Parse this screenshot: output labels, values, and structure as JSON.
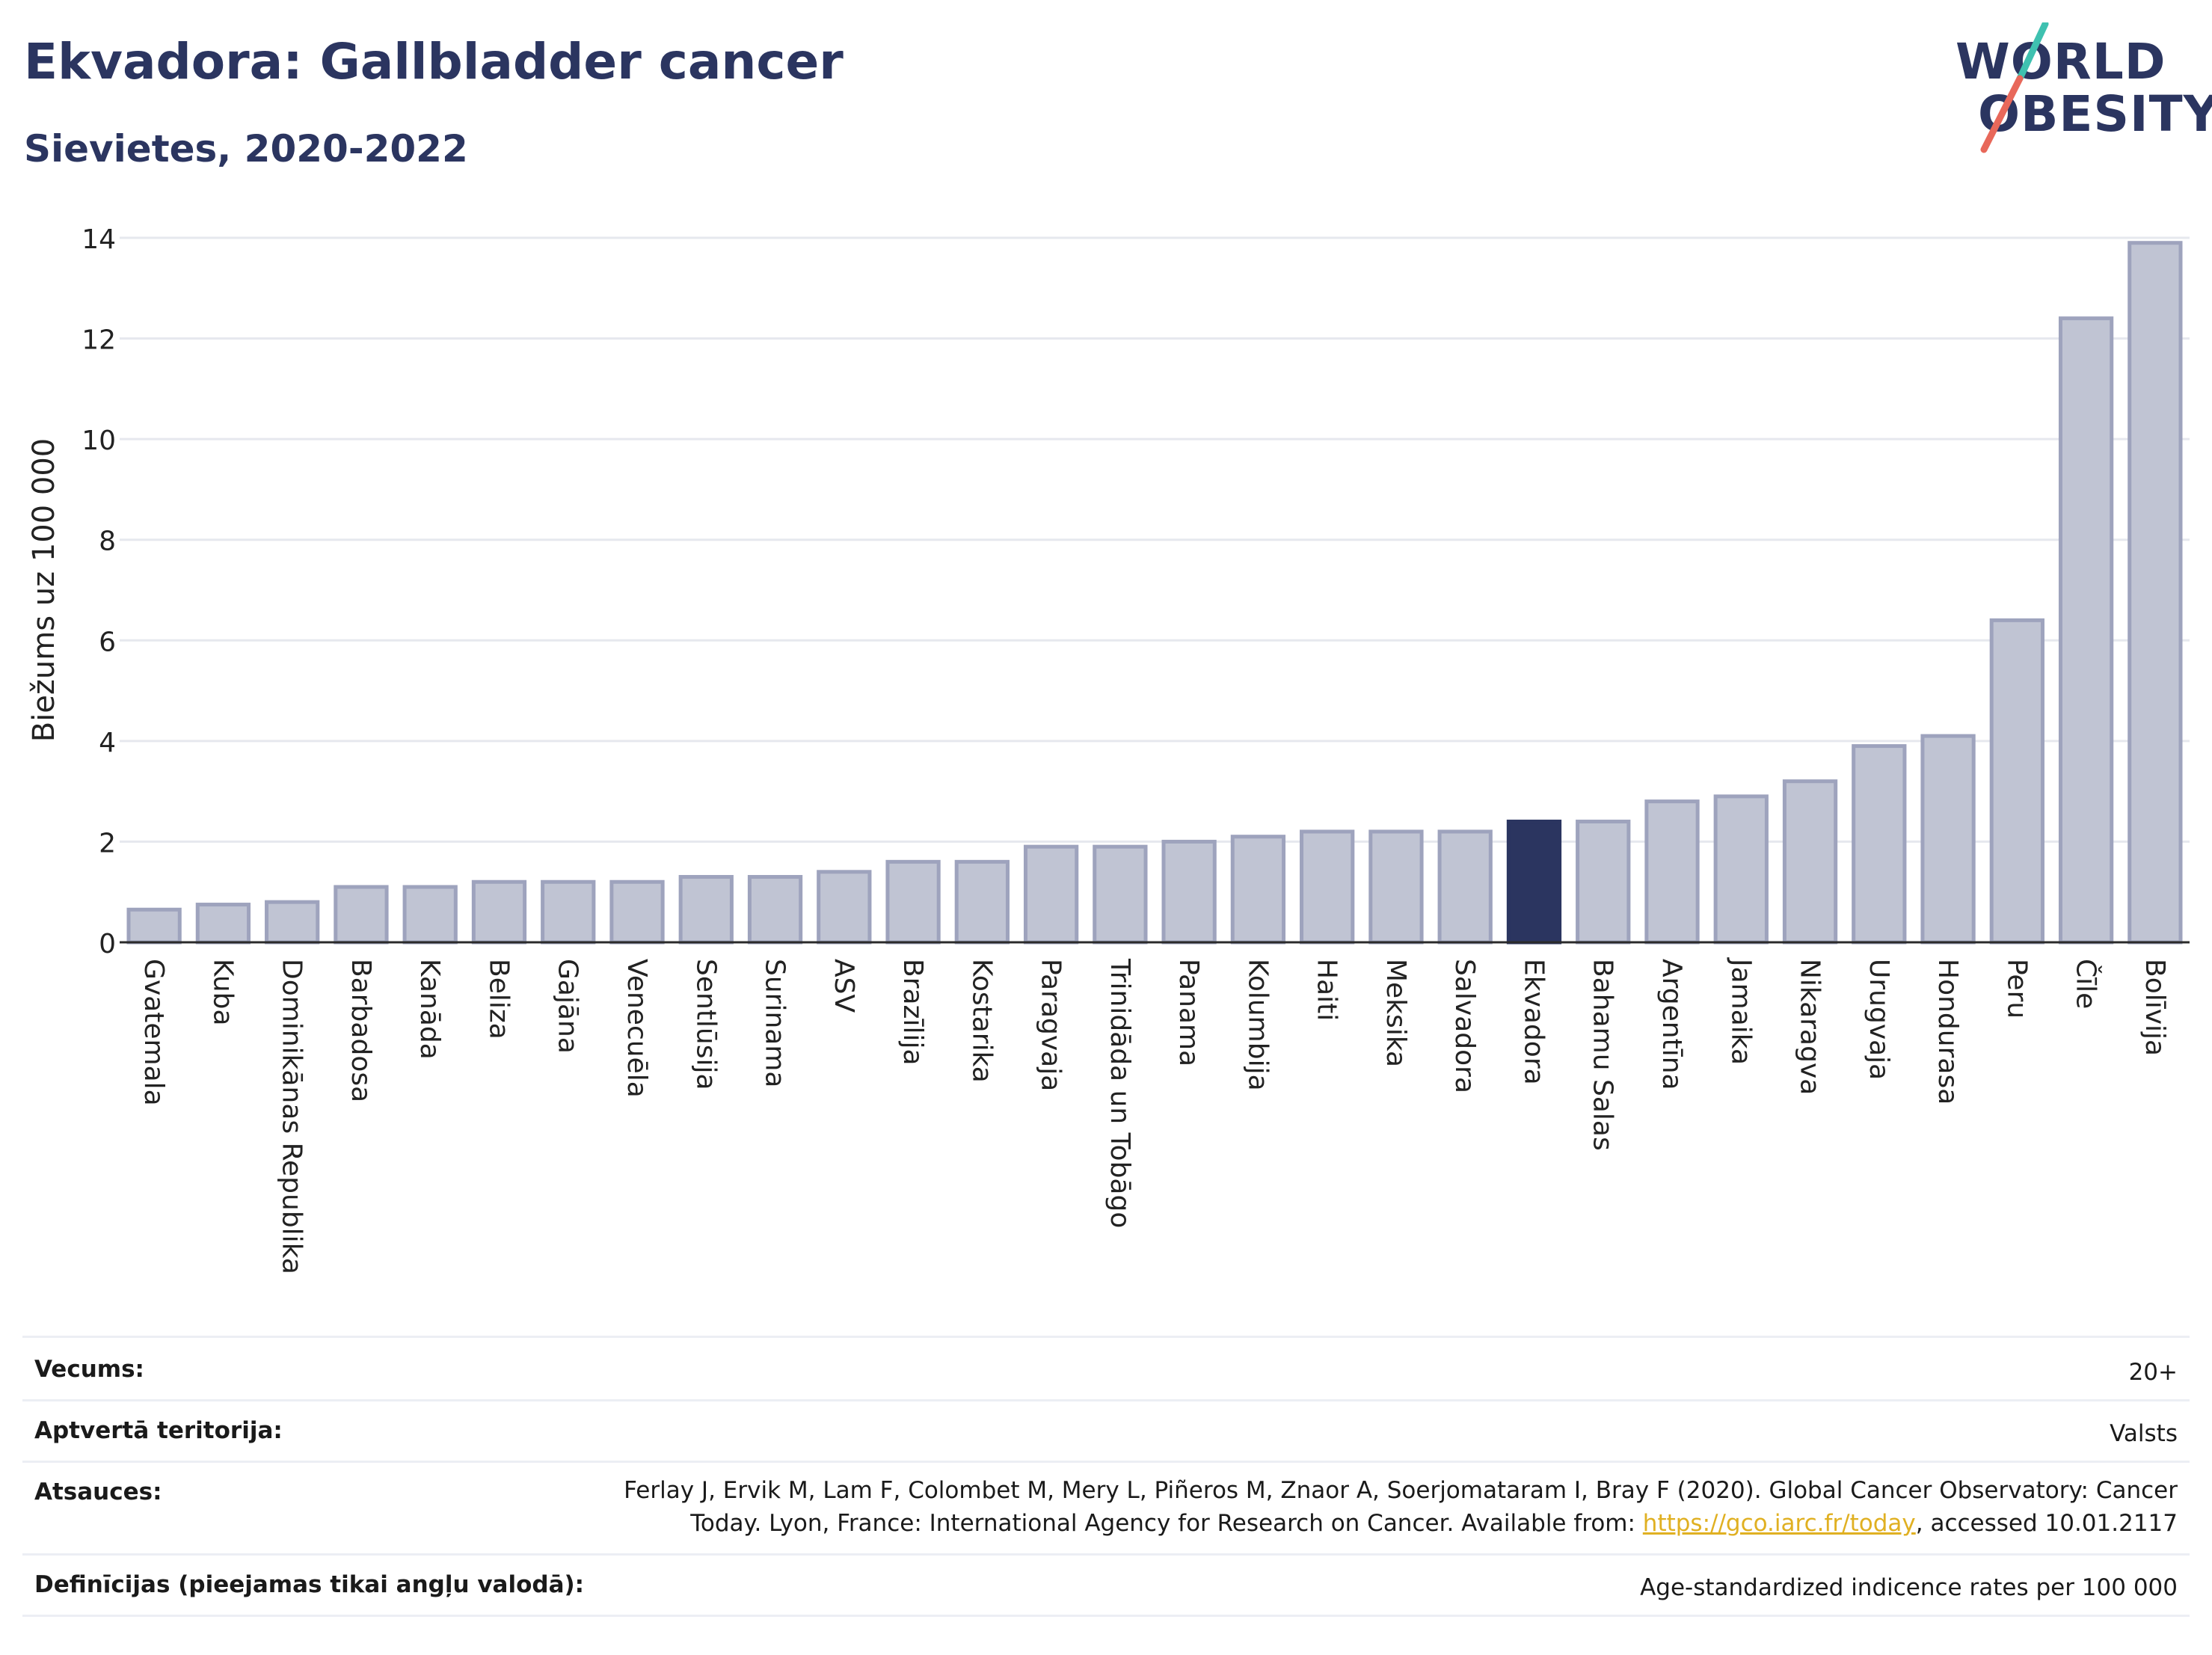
{
  "title": "Ekvadora: Gallbladder cancer",
  "subtitle": "Sievietes, 2020-2022",
  "logo": {
    "line1": "WORLD",
    "line2": "OBESITY",
    "slash_colors": [
      "#3fc1b0",
      "#e8685a"
    ]
  },
  "colors": {
    "bar": "#c0c4d3",
    "bar_border": "#9ea3bd",
    "highlight": "#2b3560",
    "grid": "#e6e8ee",
    "axis": "#2b2b2b"
  },
  "chart_data": {
    "type": "bar",
    "ylabel": "Biežums uz 100 000",
    "ylim": [
      0,
      14
    ],
    "yticks": [
      0,
      2,
      4,
      6,
      8,
      10,
      12,
      14
    ],
    "highlight": "Ekvadora",
    "categories": [
      "Gvatemala",
      "Kuba",
      "Dominikānas Republika",
      "Barbadosa",
      "Kanāda",
      "Beliza",
      "Gajāna",
      "Venecuēla",
      "Sentlūsija",
      "Surinama",
      "ASV",
      "Brazīlija",
      "Kostarika",
      "Paragvaja",
      "Trinidāda un Tobāgo",
      "Panama",
      "Kolumbija",
      "Haiti",
      "Meksika",
      "Salvadora",
      "Ekvadora",
      "Bahamu Salas",
      "Argentīna",
      "Jamaika",
      "Nikaragva",
      "Urugvaja",
      "Hondurasa",
      "Peru",
      "Čīle",
      "Bolīvija"
    ],
    "values": [
      0.65,
      0.75,
      0.8,
      1.1,
      1.1,
      1.2,
      1.2,
      1.2,
      1.3,
      1.3,
      1.4,
      1.6,
      1.6,
      1.9,
      1.9,
      2.0,
      2.1,
      2.2,
      2.2,
      2.2,
      2.4,
      2.4,
      2.8,
      2.9,
      3.2,
      3.9,
      4.1,
      6.4,
      12.4,
      13.9
    ]
  },
  "meta": [
    {
      "label": "Vecums:",
      "value": "20+"
    },
    {
      "label": "Aptvertā teritorija:",
      "value": "Valsts"
    },
    {
      "label": "Atsauces:",
      "value_line1": "Ferlay J, Ervik M, Lam F, Colombet M, Mery L, Piñeros M, Znaor A, Soerjomataram I, Bray F (2020). Global Cancer Observatory: Cancer",
      "value_pre": "Today. Lyon, France: International Agency for Research on Cancer. Available from: ",
      "link": "https://gco.iarc.fr/today",
      "value_post": ", accessed 10.01.2117"
    },
    {
      "label": "Definīcijas (pieejamas tikai angļu valodā):",
      "value": "Age-standardized indicence rates per 100 000"
    }
  ]
}
